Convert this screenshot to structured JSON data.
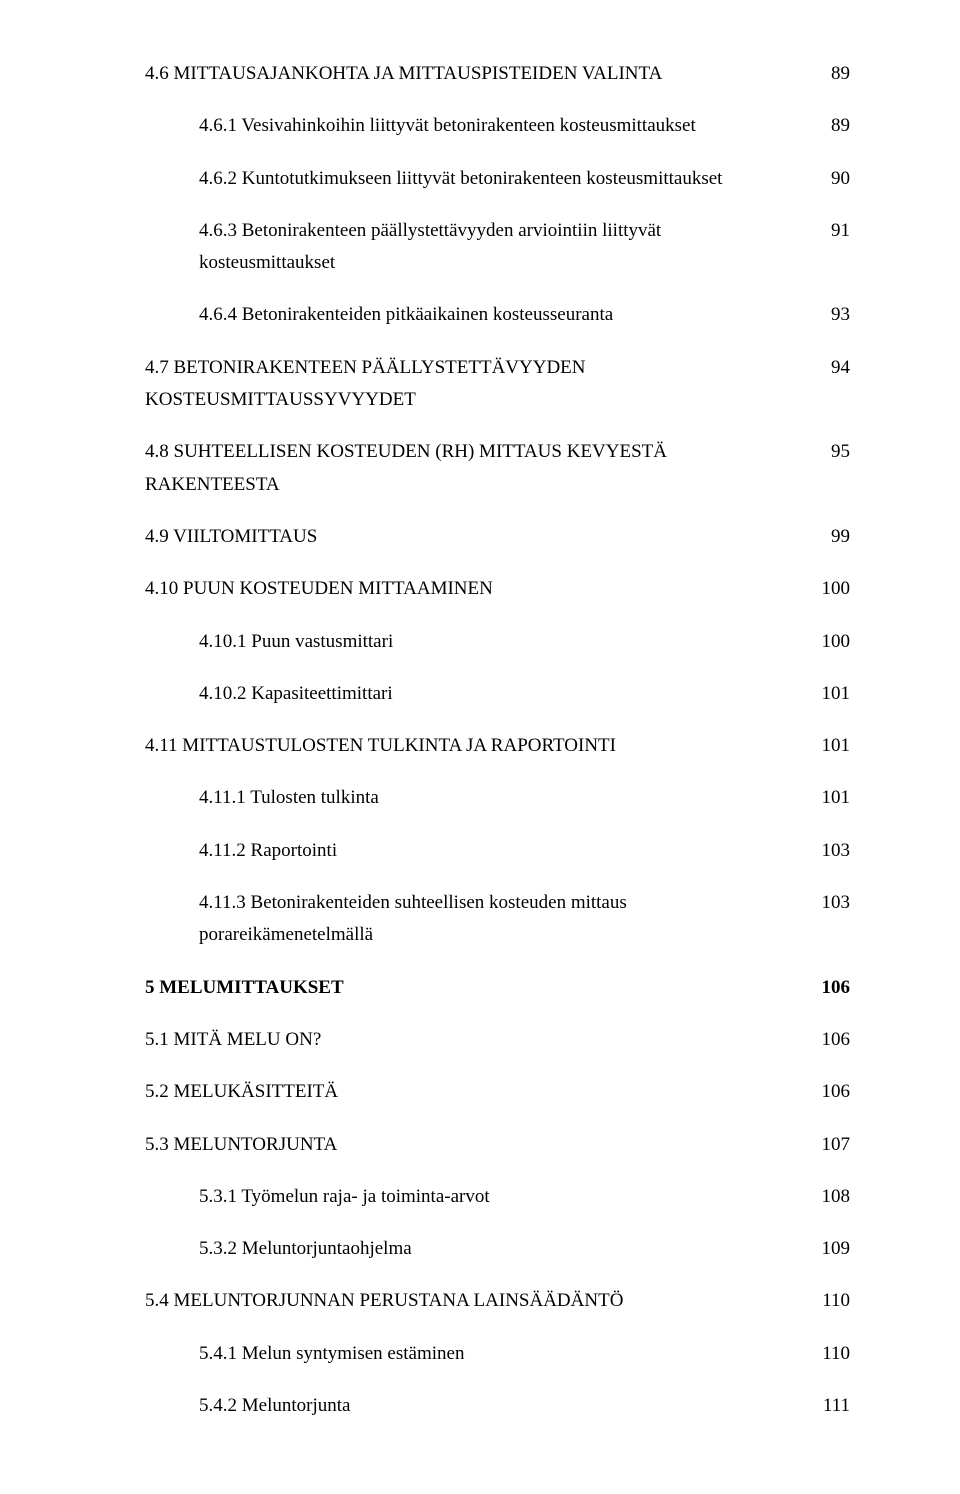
{
  "toc": [
    {
      "level": 1,
      "text": "4.6 MITTAUSAJANKOHTA JA MITTAUSPISTEIDEN VALINTA",
      "page": "89",
      "gap": false,
      "bold": false
    },
    {
      "level": 2,
      "text": "4.6.1 Vesivahinkoihin liittyvät betonirakenteen kosteusmittaukset",
      "page": "89",
      "gap": true,
      "bold": false
    },
    {
      "level": 2,
      "text": "4.6.2 Kuntotutkimukseen liittyvät betonirakenteen kosteusmittaukset",
      "page": "90",
      "gap": true,
      "bold": false
    },
    {
      "level": 2,
      "text": "4.6.3 Betonirakenteen päällystettävyyden arviointiin liittyvät kosteusmittaukset",
      "page": "91",
      "gap": true,
      "bold": false
    },
    {
      "level": 2,
      "text": "4.6.4 Betonirakenteiden pitkäaikainen kosteusseuranta",
      "page": "93",
      "gap": true,
      "bold": false
    },
    {
      "level": 1,
      "text": "4.7 BETONIRAKENTEEN PÄÄLLYSTETTÄVYYDEN KOSTEUSMITTAUSSYVYYDET",
      "page": "94",
      "gap": true,
      "bold": false
    },
    {
      "level": 1,
      "text": "4.8 SUHTEELLISEN KOSTEUDEN (RH) MITTAUS KEVYESTÄ RAKENTEESTA",
      "page": "95",
      "gap": true,
      "bold": false
    },
    {
      "level": 1,
      "text": "4.9 VIILTOMITTAUS",
      "page": "99",
      "gap": true,
      "bold": false
    },
    {
      "level": 1,
      "text": "4.10 PUUN KOSTEUDEN MITTAAMINEN",
      "page": "100",
      "gap": true,
      "bold": false
    },
    {
      "level": 2,
      "text": "4.10.1 Puun vastusmittari",
      "page": "100",
      "gap": true,
      "bold": false
    },
    {
      "level": 2,
      "text": "4.10.2 Kapasiteettimittari",
      "page": "101",
      "gap": true,
      "bold": false
    },
    {
      "level": 1,
      "text": "4.11 MITTAUSTULOSTEN TULKINTA JA RAPORTOINTI",
      "page": "101",
      "gap": true,
      "bold": false
    },
    {
      "level": 2,
      "text": "4.11.1 Tulosten tulkinta",
      "page": "101",
      "gap": true,
      "bold": false
    },
    {
      "level": 2,
      "text": "4.11.2 Raportointi",
      "page": "103",
      "gap": true,
      "bold": false
    },
    {
      "level": 2,
      "text": "4.11.3 Betonirakenteiden suhteellisen kosteuden mittaus porareikämenetelmällä",
      "page": "103",
      "gap": true,
      "bold": false
    },
    {
      "level": 1,
      "text": "5 MELUMITTAUKSET",
      "page": "106",
      "gap": true,
      "bold": true
    },
    {
      "level": 1,
      "text": "5.1 MITÄ MELU ON?",
      "page": "106",
      "gap": true,
      "bold": false
    },
    {
      "level": 1,
      "text": "5.2 MELUKÄSITTEITÄ",
      "page": "106",
      "gap": true,
      "bold": false
    },
    {
      "level": 1,
      "text": "5.3 MELUNTORJUNTA",
      "page": "107",
      "gap": true,
      "bold": false
    },
    {
      "level": 2,
      "text": "5.3.1 Työmelun raja- ja toiminta-arvot",
      "page": "108",
      "gap": true,
      "bold": false
    },
    {
      "level": 2,
      "text": "5.3.2 Meluntorjuntaohjelma",
      "page": "109",
      "gap": true,
      "bold": false
    },
    {
      "level": 1,
      "text": "5.4 MELUNTORJUNNAN PERUSTANA LAINSÄÄDÄNTÖ",
      "page": "110",
      "gap": true,
      "bold": false
    },
    {
      "level": 2,
      "text": "5.4.1 Melun syntymisen estäminen",
      "page": "110",
      "gap": true,
      "bold": false
    },
    {
      "level": 2,
      "text": "5.4.2 Meluntorjunta",
      "page": "111",
      "gap": true,
      "bold": false
    }
  ]
}
